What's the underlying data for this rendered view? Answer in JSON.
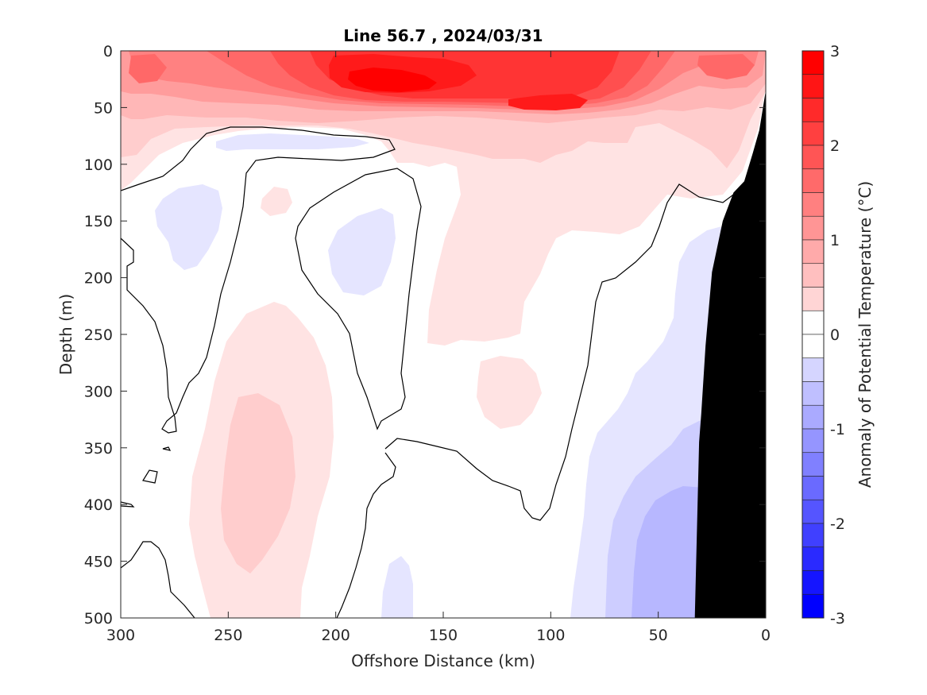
{
  "chart_data": {
    "type": "heatmap",
    "title": "Line 56.7 , 2024/03/31",
    "xlabel": "Offshore Distance (km)",
    "ylabel": "Depth (m)",
    "xlim": [
      300,
      0
    ],
    "ylim": [
      0,
      500
    ],
    "x_direction": "reversed",
    "y_direction": "reversed",
    "x_ticks": [
      "300",
      "250",
      "200",
      "150",
      "100",
      "50",
      "0"
    ],
    "x_tick_values": [
      300,
      250,
      200,
      150,
      100,
      50,
      0
    ],
    "y_ticks": [
      "0",
      "50",
      "100",
      "150",
      "200",
      "250",
      "300",
      "350",
      "400",
      "450",
      "500"
    ],
    "y_tick_values": [
      0,
      50,
      100,
      150,
      200,
      250,
      300,
      350,
      400,
      450,
      500
    ],
    "colorbar": {
      "label": "Anomaly of Potential Temperature (°C)",
      "range": [
        -3,
        3
      ],
      "step": 0.25,
      "ticks": [
        "3",
        "2",
        "1",
        "0",
        "-1",
        "-2",
        "-3"
      ],
      "tick_values": [
        3,
        2,
        1,
        0,
        -1,
        -2,
        -3
      ]
    },
    "zero_contour": true,
    "bathymetry_color": "#000000",
    "bathymetry_profile": [
      {
        "km": 0,
        "depth": 35
      },
      {
        "km": 3,
        "depth": 70
      },
      {
        "km": 6,
        "depth": 90
      },
      {
        "km": 10,
        "depth": 115
      },
      {
        "km": 15,
        "depth": 125
      },
      {
        "km": 20,
        "depth": 150
      },
      {
        "km": 25,
        "depth": 195
      },
      {
        "km": 28,
        "depth": 260
      },
      {
        "km": 30,
        "depth": 320
      },
      {
        "km": 31,
        "depth": 345
      },
      {
        "km": 33,
        "depth": 500
      }
    ],
    "features": [
      {
        "region": "warm core",
        "x_range": [
          85,
          200
        ],
        "depth_range": [
          25,
          60
        ],
        "anomaly": 3.0
      },
      {
        "region": "surface warm layer",
        "x_range": [
          0,
          300
        ],
        "depth_range": [
          0,
          100
        ],
        "anomaly": 1.5
      },
      {
        "region": "warm lens",
        "x_range": [
          220,
          260
        ],
        "depth_range": [
          300,
          460
        ],
        "anomaly": 0.5
      },
      {
        "region": "cold nearshore",
        "x_range": [
          32,
          65
        ],
        "depth_range": [
          385,
          500
        ],
        "anomaly": -0.75
      }
    ]
  }
}
